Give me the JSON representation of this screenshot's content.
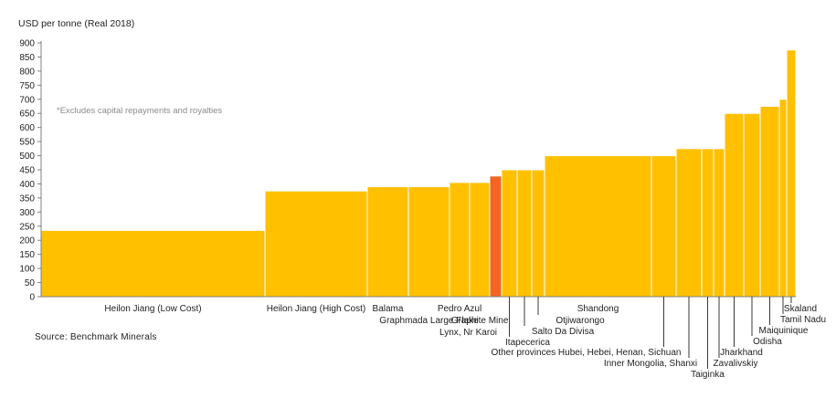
{
  "chart_data": {
    "type": "bar",
    "subtype": "cost-curve",
    "ylabel": "USD per tonne (Real 2018)",
    "ylim": [
      0,
      900
    ],
    "yticks": [
      0,
      50,
      100,
      150,
      200,
      250,
      300,
      350,
      400,
      450,
      500,
      550,
      600,
      650,
      700,
      750,
      800,
      850,
      900
    ],
    "grid": false,
    "note": "*Excludes capital repayments and royalties",
    "source": "Source: Benchmark Minerals",
    "colors": {
      "default": "#FFC000",
      "highlight": "#F26522",
      "axis": "#7f7f7f"
    },
    "series": [
      {
        "label": "Heilon Jiang (Low Cost)",
        "value": 235,
        "width": 245
      },
      {
        "label": "Heilon Jiang (High Cost)",
        "value": 375,
        "width": 112
      },
      {
        "label": "Balama",
        "value": 390,
        "width": 45
      },
      {
        "label": "Graphmada Large Flake",
        "value": 390,
        "width": 45
      },
      {
        "label": "Pedro Azul",
        "value": 405,
        "width": 22
      },
      {
        "label": "Graphite Mine",
        "value": 405,
        "width": 22
      },
      {
        "label": "Lynx, Nr Karoi",
        "value": 428,
        "width": 13,
        "highlight": true
      },
      {
        "label": "Itapecerica",
        "value": 450,
        "width": 17
      },
      {
        "label": "Salto Da Divisa",
        "value": 450,
        "width": 16
      },
      {
        "label": "Otjiwarongo",
        "value": 450,
        "width": 14
      },
      {
        "label": "Shandong",
        "value": 500,
        "width": 117
      },
      {
        "label": "Other provinces Hubei, Hebei, Henan, Sichuan",
        "value": 500,
        "width": 27
      },
      {
        "label": "Inner Mongolia, Shanxi",
        "value": 525,
        "width": 28
      },
      {
        "label": "Taiginka",
        "value": 525,
        "width": 13
      },
      {
        "label": "Zavalivskiy",
        "value": 525,
        "width": 12
      },
      {
        "label": "Jharkhand",
        "value": 650,
        "width": 21
      },
      {
        "label": "Odisha",
        "value": 650,
        "width": 18
      },
      {
        "label": "Maiquinique",
        "value": 675,
        "width": 21
      },
      {
        "label": "Tamil Nadu",
        "value": 700,
        "width": 8
      },
      {
        "label": "Skaland",
        "value": 875,
        "width": 10
      }
    ]
  }
}
